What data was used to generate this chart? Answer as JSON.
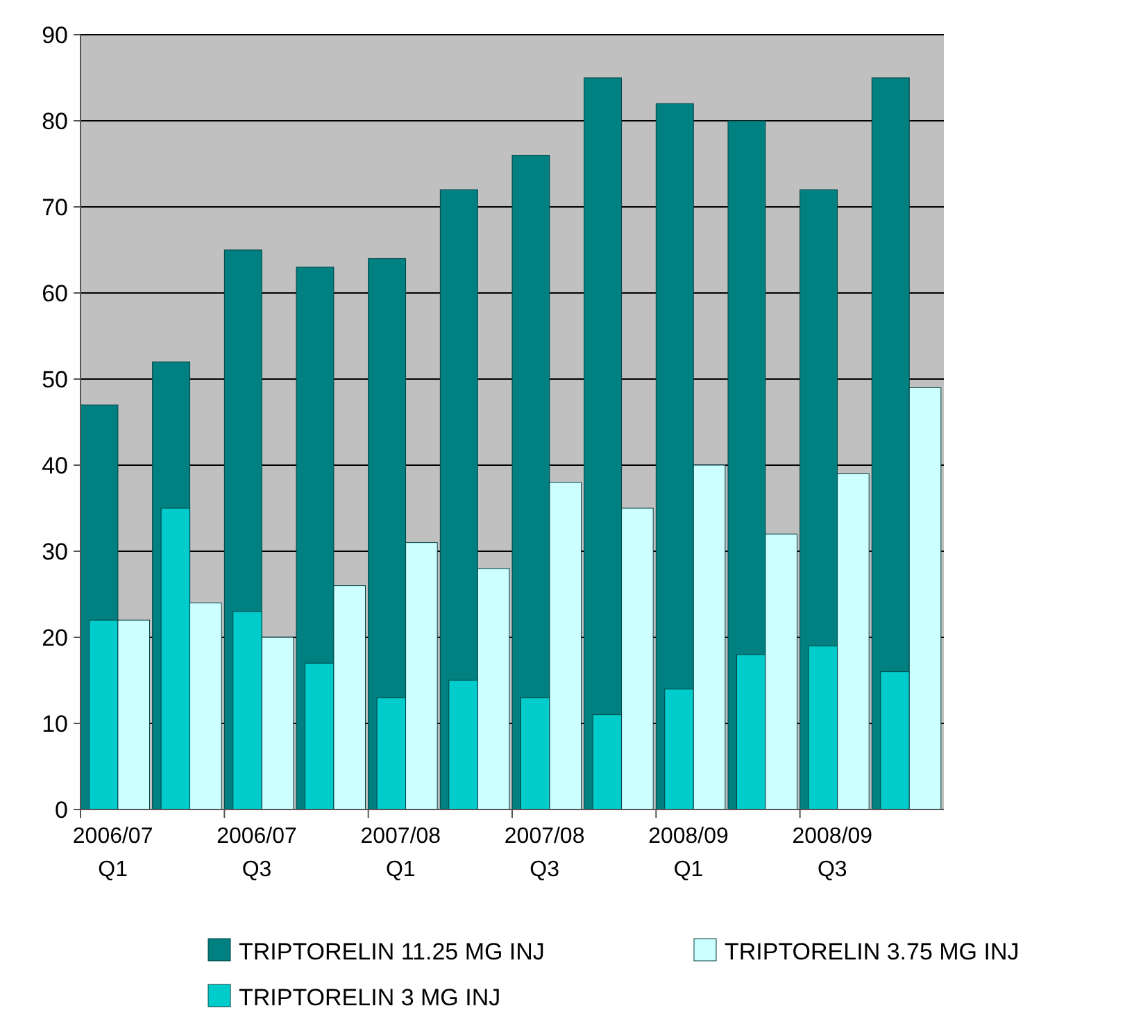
{
  "chart_data": {
    "type": "bar",
    "categories": [
      "2006/07\nQ1",
      null,
      "2006/07\nQ3",
      null,
      "2007/08\nQ1",
      null,
      "2007/08\nQ3",
      null,
      "2008/09\nQ1",
      null,
      "2008/09\nQ3",
      null
    ],
    "series": [
      {
        "name": "TRIPTORELIN 11.25 MG INJ",
        "color": "#008080",
        "values": [
          47,
          52,
          65,
          63,
          64,
          72,
          76,
          85,
          82,
          80,
          72,
          85
        ]
      },
      {
        "name": "TRIPTORELIN 3.75 MG INJ",
        "color": "#ccffff",
        "values": [
          22,
          24,
          20,
          26,
          31,
          28,
          38,
          35,
          40,
          32,
          39,
          49
        ]
      },
      {
        "name": "TRIPTORELIN 3 MG INJ",
        "color": "#00cccc",
        "values": [
          22,
          35,
          23,
          17,
          13,
          15,
          13,
          11,
          14,
          18,
          19,
          16
        ]
      }
    ],
    "ylim": [
      0,
      90
    ],
    "yticks": [
      0,
      10,
      20,
      30,
      40,
      50,
      60,
      70,
      80,
      90
    ],
    "grid": "y",
    "legend": "bottom"
  }
}
